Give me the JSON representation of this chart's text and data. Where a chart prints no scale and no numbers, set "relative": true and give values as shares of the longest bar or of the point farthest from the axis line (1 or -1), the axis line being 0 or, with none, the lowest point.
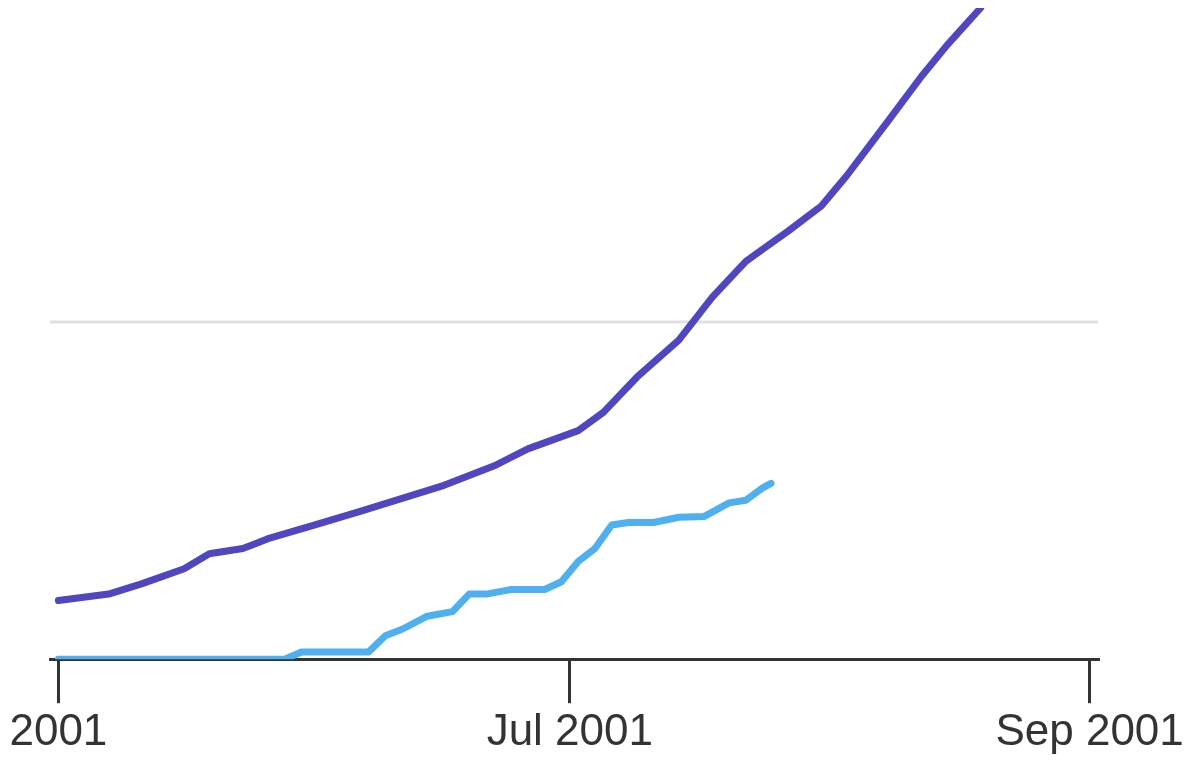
{
  "chart_data": {
    "type": "line",
    "relative": true,
    "xlim": [
      "2001-04-30",
      "2001-09-02"
    ],
    "xticks": [
      {
        "value": "2001-05-01",
        "label": "2001"
      },
      {
        "value": "2001-07-01",
        "label": "Jul 2001"
      },
      {
        "value": "2001-09-01",
        "label": "Sep 2001"
      }
    ],
    "series": [
      {
        "color": "#4f46c0",
        "x": [
          "2001-05-01",
          "2001-05-07",
          "2001-05-11",
          "2001-05-16",
          "2001-05-19",
          "2001-05-23",
          "2001-05-26",
          "2001-05-31",
          "2001-06-06",
          "2001-06-11",
          "2001-06-16",
          "2001-06-22",
          "2001-06-26",
          "2001-07-02",
          "2001-07-05",
          "2001-07-09",
          "2001-07-14",
          "2001-07-18",
          "2001-07-22",
          "2001-07-27",
          "2001-07-31",
          "2001-08-03",
          "2001-08-08",
          "2001-08-12",
          "2001-08-15",
          "2001-08-19"
        ],
        "values": [
          0.09,
          0.1,
          0.116,
          0.139,
          0.162,
          0.17,
          0.185,
          0.204,
          0.227,
          0.247,
          0.267,
          0.297,
          0.323,
          0.351,
          0.379,
          0.433,
          0.49,
          0.556,
          0.611,
          0.657,
          0.696,
          0.742,
          0.827,
          0.896,
          0.943,
          1
        ]
      },
      {
        "color": "#4fb0f0",
        "x": [
          "2001-05-01",
          "2001-05-28",
          "2001-05-30",
          "2001-06-07",
          "2001-06-09",
          "2001-06-11",
          "2001-06-14",
          "2001-06-17",
          "2001-06-19",
          "2001-06-21",
          "2001-06-24",
          "2001-06-28",
          "2001-06-30",
          "2001-07-02",
          "2001-07-04",
          "2001-07-06",
          "2001-07-08",
          "2001-07-11",
          "2001-07-14",
          "2001-07-17",
          "2001-07-20",
          "2001-07-22",
          "2001-07-24",
          "2001-07-25"
        ],
        "values": [
          0,
          0,
          0.011,
          0.011,
          0.036,
          0.046,
          0.066,
          0.073,
          0.1,
          0.1,
          0.107,
          0.107,
          0.119,
          0.15,
          0.17,
          0.206,
          0.21,
          0.21,
          0.218,
          0.219,
          0.24,
          0.244,
          0.263,
          0.27
        ]
      }
    ],
    "ref_lines": [
      {
        "axis": "y",
        "value": 0.518,
        "color": "#e0e0e0"
      }
    ],
    "grid": false,
    "legend": false,
    "marker": "none",
    "line_style": "solid"
  }
}
